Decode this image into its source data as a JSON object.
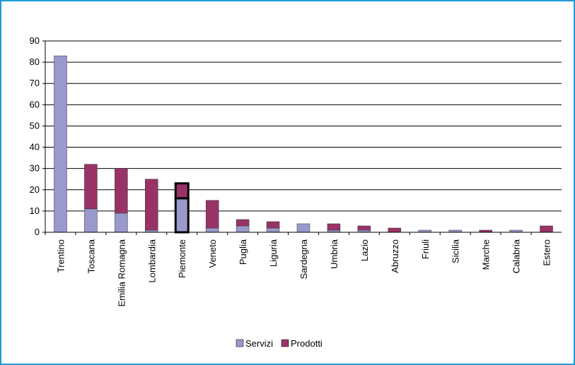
{
  "chart_data": {
    "type": "bar",
    "stacked": true,
    "categories": [
      "Trentino",
      "Toscana",
      "Emilia Romagna",
      "Lombardia",
      "Piemonte",
      "Veneto",
      "Puglia",
      "Liguria",
      "Sardegna",
      "Umbria",
      "Lazio",
      "Abruzzo",
      "Friuli",
      "Sicilia",
      "Marche",
      "Calabria",
      "Estero"
    ],
    "series": [
      {
        "name": "Servizi",
        "color": "#9999cc",
        "values": [
          83,
          11,
          9,
          1,
          16,
          2,
          3,
          2,
          4,
          1,
          1,
          0,
          1,
          1,
          0,
          1,
          0
        ]
      },
      {
        "name": "Prodotti",
        "color": "#993366",
        "values": [
          0,
          21,
          21,
          24,
          7,
          13,
          3,
          3,
          0,
          3,
          2,
          2,
          0,
          0,
          1,
          0,
          3
        ]
      }
    ],
    "highlighted_category": "Piemonte",
    "ylim": [
      0,
      90
    ],
    "yticks": [
      "0",
      "10",
      "20",
      "30",
      "40",
      "50",
      "60",
      "70",
      "80",
      "90"
    ],
    "grid": true,
    "legend": "bottom-center",
    "title": "",
    "xlabel": "",
    "ylabel": ""
  }
}
